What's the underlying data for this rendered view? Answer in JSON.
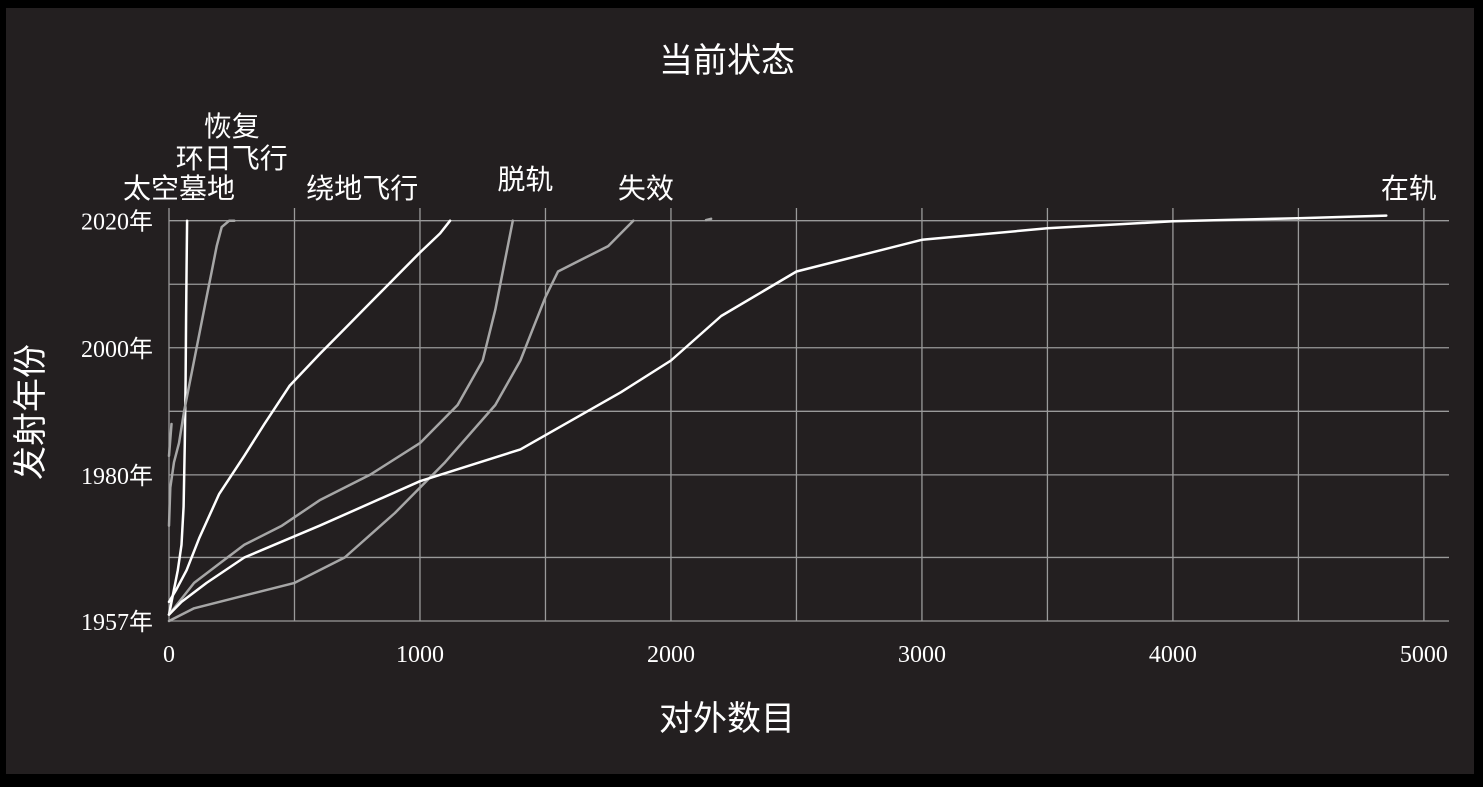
{
  "chart_data": {
    "type": "line",
    "title": "当前状态",
    "xlabel": "对外数目",
    "ylabel": "发射年份",
    "xlim": [
      0,
      5100
    ],
    "ylim": [
      1957,
      2022
    ],
    "x_ticks": [
      {
        "value": 0,
        "label": "0"
      },
      {
        "value": 1000,
        "label": "1000"
      },
      {
        "value": 2000,
        "label": "2000"
      },
      {
        "value": 3000,
        "label": "3000"
      },
      {
        "value": 4000,
        "label": "4000"
      },
      {
        "value": 5000,
        "label": "5000"
      }
    ],
    "y_ticks": [
      {
        "value": 1957,
        "label": "1957年"
      },
      {
        "value": 1980,
        "label": "1980年"
      },
      {
        "value": 2000,
        "label": "2000年"
      },
      {
        "value": 2020,
        "label": "2020年"
      }
    ],
    "grid": true,
    "colors": {
      "background": "#231f20",
      "grid": "#9a9a9a",
      "primary": "#ffffff",
      "secondary": "#a6a6a6"
    },
    "series": [
      {
        "name": "太空墓地",
        "color": "#ffffff",
        "label_x": 40,
        "label_y": 2023.6,
        "points": [
          [
            0,
            1958
          ],
          [
            25,
            1963
          ],
          [
            35,
            1965
          ],
          [
            50,
            1969
          ],
          [
            58,
            1975
          ],
          [
            63,
            1985
          ],
          [
            66,
            1995
          ],
          [
            68,
            2005
          ],
          [
            70,
            2013
          ],
          [
            72,
            2020
          ]
        ]
      },
      {
        "name": "恢复",
        "color": "#a6a6a6",
        "label_x": 250,
        "label_y": 2033.3,
        "points": [
          [
            0,
            1972
          ],
          [
            5,
            1978
          ],
          [
            20,
            1982
          ],
          [
            40,
            1985
          ],
          [
            60,
            1990
          ],
          [
            90,
            1996
          ],
          [
            120,
            2002
          ],
          [
            150,
            2008
          ],
          [
            170,
            2012
          ],
          [
            190,
            2016
          ],
          [
            210,
            2019
          ],
          [
            240,
            2020
          ],
          [
            260,
            2020
          ]
        ]
      },
      {
        "name": "环日飞行",
        "color": "#a6a6a6",
        "label_x": 250,
        "label_y": 2028.3,
        "points": [
          [
            0,
            1983
          ],
          [
            10,
            1988
          ]
        ]
      },
      {
        "name": "绕地飞行",
        "color": "#ffffff",
        "label_x": 770,
        "label_y": 2023.6,
        "points": [
          [
            0,
            1960
          ],
          [
            30,
            1962
          ],
          [
            70,
            1965
          ],
          [
            120,
            1970
          ],
          [
            200,
            1977
          ],
          [
            300,
            1983
          ],
          [
            380,
            1988
          ],
          [
            480,
            1994
          ],
          [
            600,
            1999
          ],
          [
            700,
            2003
          ],
          [
            800,
            2007
          ],
          [
            900,
            2011
          ],
          [
            1000,
            2015
          ],
          [
            1080,
            2018
          ],
          [
            1120,
            2020
          ]
        ]
      },
      {
        "name": "脱轨",
        "color": "#a6a6a6",
        "label_x": 1420,
        "label_y": 2025.0,
        "points": [
          [
            0,
            1958
          ],
          [
            100,
            1963
          ],
          [
            200,
            1966
          ],
          [
            300,
            1969
          ],
          [
            450,
            1972
          ],
          [
            600,
            1976
          ],
          [
            800,
            1980
          ],
          [
            1000,
            1985
          ],
          [
            1150,
            1991
          ],
          [
            1250,
            1998
          ],
          [
            1300,
            2006
          ],
          [
            1340,
            2014
          ],
          [
            1370,
            2020
          ]
        ]
      },
      {
        "name": "失效",
        "color": "#a6a6a6",
        "label_x": 1900,
        "label_y": 2023.6,
        "points": [
          [
            0,
            1957
          ],
          [
            100,
            1959
          ],
          [
            300,
            1961
          ],
          [
            500,
            1963
          ],
          [
            700,
            1967
          ],
          [
            900,
            1974
          ],
          [
            1100,
            1982
          ],
          [
            1300,
            1991
          ],
          [
            1400,
            1998
          ],
          [
            1450,
            2003
          ],
          [
            1500,
            2008
          ],
          [
            1550,
            2012
          ],
          [
            1650,
            2014
          ],
          [
            1750,
            2016
          ],
          [
            1850,
            2020
          ]
        ]
      },
      {
        "name": "",
        "color": "#a6a6a6",
        "label_x": 0,
        "label_y": 0,
        "points": [
          [
            2140,
            2020.1
          ],
          [
            2160,
            2020.3
          ]
        ]
      },
      {
        "name": "在轨",
        "color": "#ffffff",
        "label_x": 4940,
        "label_y": 2023.6,
        "points": [
          [
            0,
            1958
          ],
          [
            50,
            1960
          ],
          [
            150,
            1963
          ],
          [
            300,
            1967
          ],
          [
            600,
            1972
          ],
          [
            1000,
            1979
          ],
          [
            1400,
            1984
          ],
          [
            1800,
            1993
          ],
          [
            2000,
            1998
          ],
          [
            2200,
            2005
          ],
          [
            2500,
            2012
          ],
          [
            3000,
            2017
          ],
          [
            3500,
            2018.8
          ],
          [
            4000,
            2019.9
          ],
          [
            4500,
            2020.4
          ],
          [
            4850,
            2020.8
          ]
        ]
      }
    ]
  }
}
